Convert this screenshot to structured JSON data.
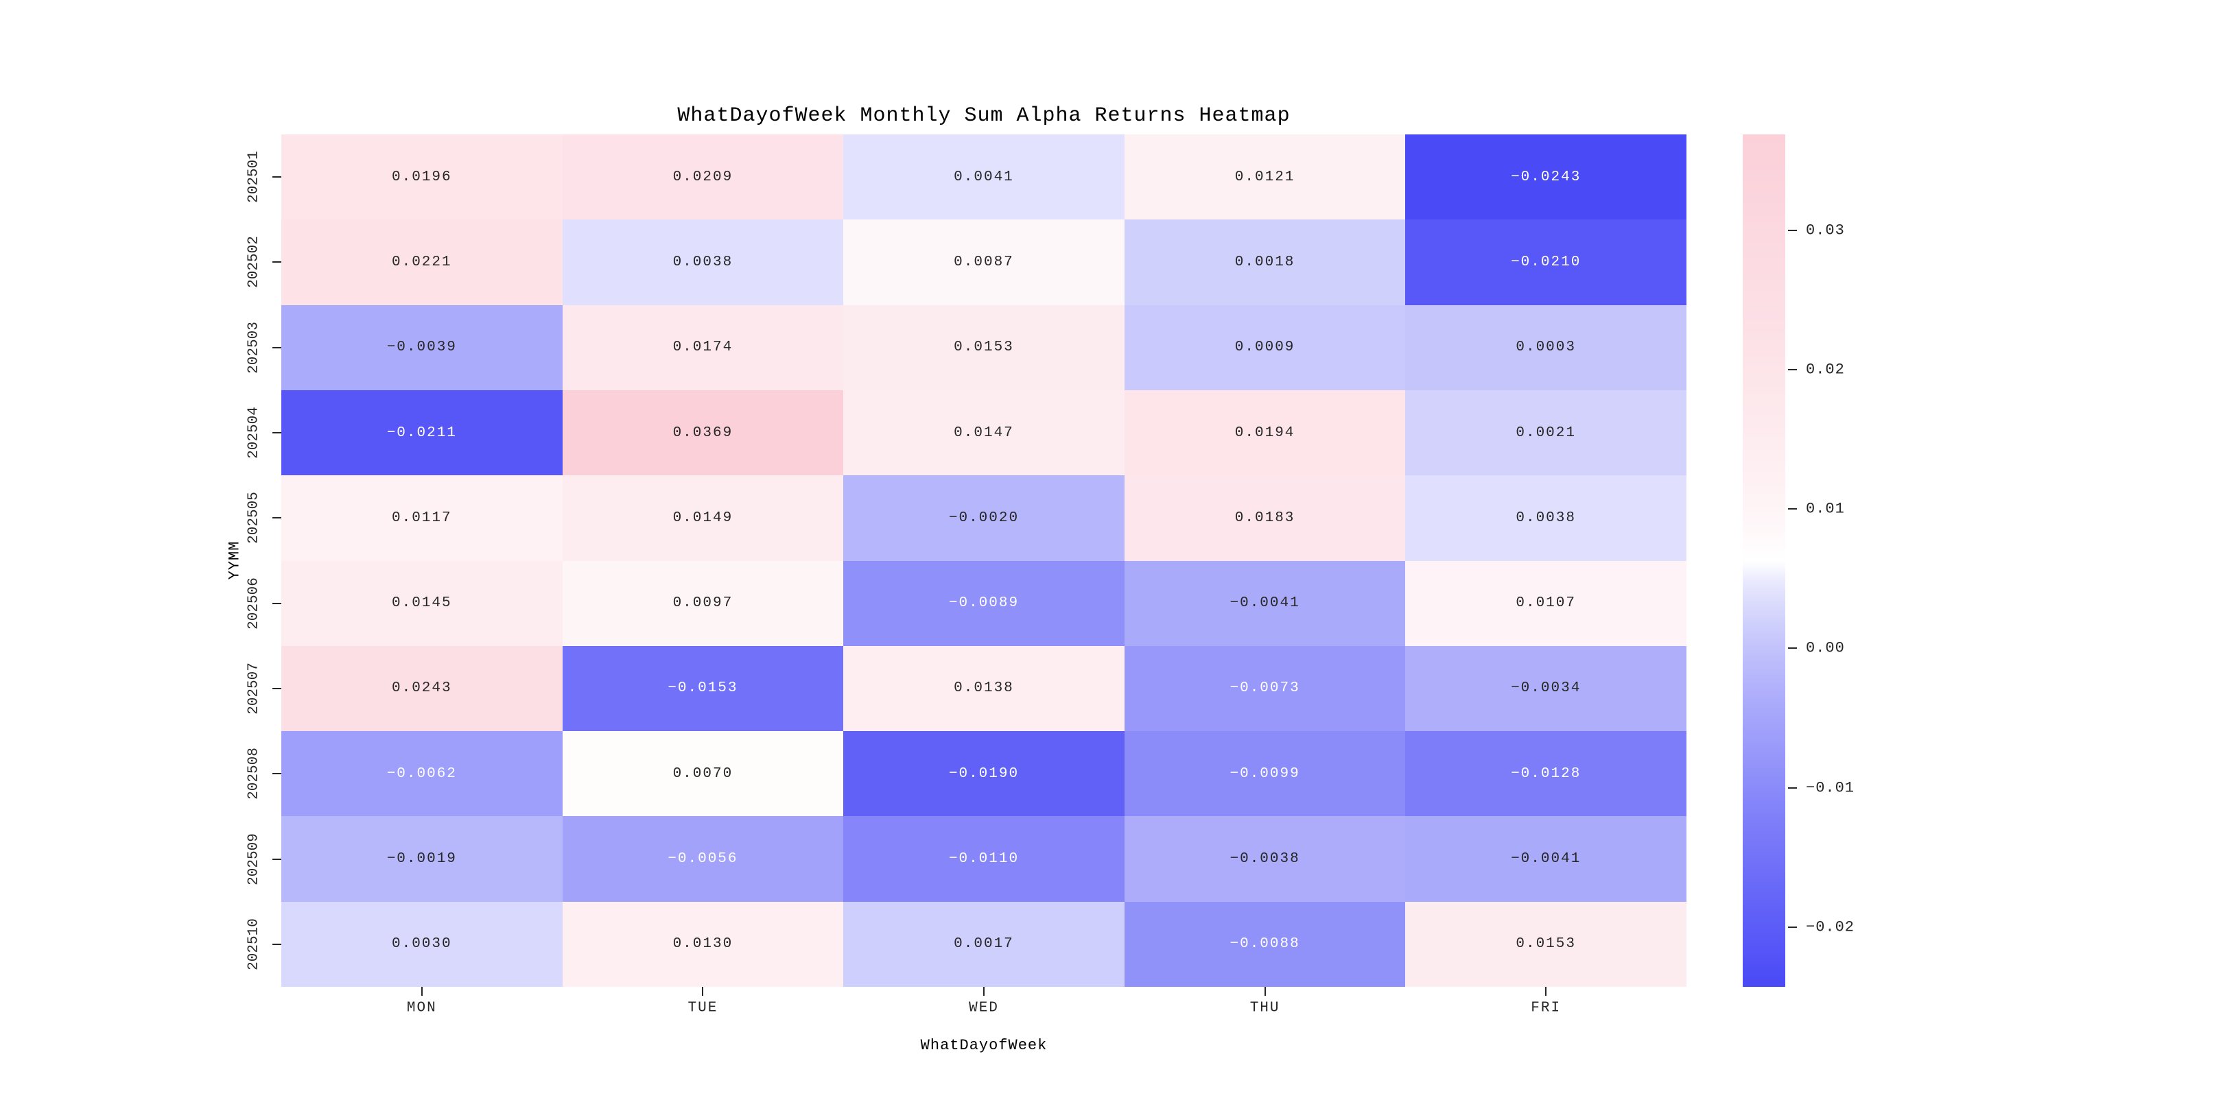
{
  "chart_data": {
    "type": "heatmap",
    "title": "WhatDayofWeek Monthly Sum Alpha Returns Heatmap",
    "xlabel": "WhatDayofWeek",
    "ylabel": "YYMM",
    "x_categories": [
      "MON",
      "TUE",
      "WED",
      "THU",
      "FRI"
    ],
    "y_categories": [
      "202501",
      "202502",
      "202503",
      "202504",
      "202505",
      "202506",
      "202507",
      "202508",
      "202509",
      "202510"
    ],
    "values": [
      [
        0.0196,
        0.0209,
        0.0041,
        0.0121,
        -0.0243
      ],
      [
        0.0221,
        0.0038,
        0.0087,
        0.0018,
        -0.021
      ],
      [
        -0.0039,
        0.0174,
        0.0153,
        0.0009,
        0.0003
      ],
      [
        -0.0211,
        0.0369,
        0.0147,
        0.0194,
        0.0021
      ],
      [
        0.0117,
        0.0149,
        -0.002,
        0.0183,
        0.0038
      ],
      [
        0.0145,
        0.0097,
        -0.0089,
        -0.0041,
        0.0107
      ],
      [
        0.0243,
        -0.0153,
        0.0138,
        -0.0073,
        -0.0034
      ],
      [
        -0.0062,
        0.007,
        -0.019,
        -0.0099,
        -0.0128
      ],
      [
        -0.0019,
        -0.0056,
        -0.011,
        -0.0038,
        -0.0041
      ],
      [
        0.003,
        0.013,
        0.0017,
        -0.0088,
        0.0153
      ]
    ],
    "value_format_decimals": 4,
    "vmin": -0.0243,
    "vmax": 0.0369,
    "grid": false,
    "legend": false,
    "colormap": {
      "negative_end": "#4a4af7",
      "midpoint": "#ffffff",
      "positive_end": "#fbd0d9",
      "gamma_negative": 0.7,
      "gamma_positive": 0.72
    },
    "annotation_colors": {
      "dark_text": "#262626",
      "light_text": "#ffffff",
      "luminance_threshold": 0.408
    },
    "colorbar": {
      "position": "right",
      "tick_labels": [
        "0.03",
        "0.02",
        "0.01",
        "0.00",
        "-0.01",
        "-0.02"
      ],
      "tick_values": [
        0.03,
        0.02,
        0.01,
        0.0,
        -0.01,
        -0.02
      ]
    }
  }
}
